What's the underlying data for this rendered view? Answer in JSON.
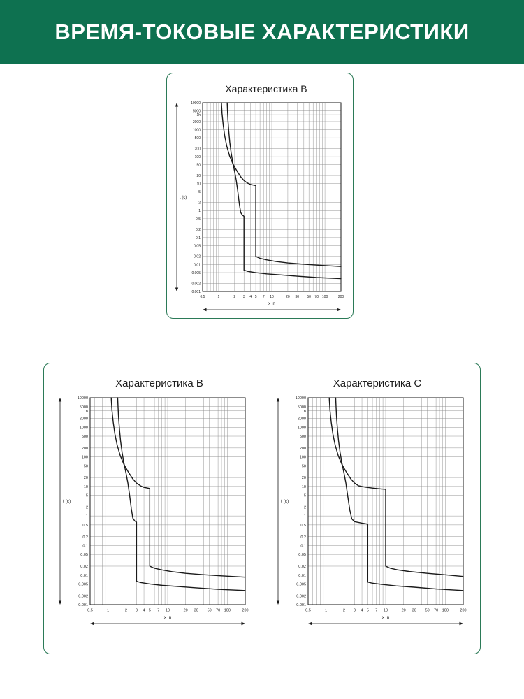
{
  "header": {
    "title": "ВРЕМЯ-ТОКОВЫЕ ХАРАКТЕРИСТИКИ"
  },
  "colors": {
    "header_bg": "#0E7150",
    "header_text": "#FFFFFF",
    "card_border": "#2B7A57",
    "title_text": "#1C1C1C",
    "curve": "#1A1A1A",
    "grid": "#8A8A8A",
    "axis": "#1A1A1A"
  },
  "chart_data": [
    {
      "type": "line",
      "title": "Характеристика B",
      "xlabel": "x In",
      "ylabel": "t (c)",
      "x_scale": "log",
      "y_scale": "log",
      "xlim": [
        0.5,
        200
      ],
      "ylim": [
        0.001,
        10000
      ],
      "x_ticks": [
        {
          "v": 0.5,
          "l": "0.5"
        },
        {
          "v": 1,
          "l": "1"
        },
        {
          "v": 2,
          "l": "2"
        },
        {
          "v": 3,
          "l": "3"
        },
        {
          "v": 4,
          "l": "4"
        },
        {
          "v": 5,
          "l": "5"
        },
        {
          "v": 7,
          "l": "7"
        },
        {
          "v": 10,
          "l": "10"
        },
        {
          "v": 20,
          "l": "20"
        },
        {
          "v": 30,
          "l": "30"
        },
        {
          "v": 50,
          "l": "50"
        },
        {
          "v": 70,
          "l": "70"
        },
        {
          "v": 100,
          "l": "100"
        },
        {
          "v": 200,
          "l": "200"
        }
      ],
      "y_ticks": [
        {
          "v": 10000,
          "l": "10000"
        },
        {
          "v": 5000,
          "l": "5000"
        },
        {
          "v": 3600,
          "l": "1h"
        },
        {
          "v": 2000,
          "l": "2000"
        },
        {
          "v": 1000,
          "l": "1000"
        },
        {
          "v": 500,
          "l": "500"
        },
        {
          "v": 200,
          "l": "200"
        },
        {
          "v": 100,
          "l": "100"
        },
        {
          "v": 50,
          "l": "50"
        },
        {
          "v": 20,
          "l": "20"
        },
        {
          "v": 10,
          "l": "10"
        },
        {
          "v": 5,
          "l": "5"
        },
        {
          "v": 2,
          "l": "2"
        },
        {
          "v": 1,
          "l": "1"
        },
        {
          "v": 0.5,
          "l": "0.5"
        },
        {
          "v": 0.2,
          "l": "0.2"
        },
        {
          "v": 0.1,
          "l": "0.1"
        },
        {
          "v": 0.05,
          "l": "0.05"
        },
        {
          "v": 0.02,
          "l": "0.02"
        },
        {
          "v": 0.01,
          "l": "0.01"
        },
        {
          "v": 0.005,
          "l": "0.005"
        },
        {
          "v": 0.002,
          "l": "0.002"
        },
        {
          "v": 0.001,
          "l": "0.001"
        }
      ],
      "x_grid": [
        0.5,
        0.6,
        0.7,
        0.8,
        0.9,
        1,
        2,
        3,
        4,
        5,
        6,
        7,
        8,
        9,
        10,
        20,
        30,
        40,
        50,
        60,
        70,
        80,
        90,
        100,
        200
      ],
      "y_grid": [
        0.001,
        0.002,
        0.005,
        0.01,
        0.02,
        0.05,
        0.1,
        0.2,
        0.5,
        1,
        2,
        5,
        10,
        20,
        50,
        100,
        200,
        500,
        1000,
        2000,
        3600,
        5000,
        10000
      ],
      "magnetic_trip_range_xIn": [
        3,
        5
      ],
      "series": [
        {
          "name": "upper-trip-limit",
          "points": [
            [
              1.13,
              10000
            ],
            [
              1.16,
              4000
            ],
            [
              1.22,
              1500
            ],
            [
              1.3,
              600
            ],
            [
              1.42,
              250
            ],
            [
              1.6,
              110
            ],
            [
              1.85,
              55
            ],
            [
              2.2,
              30
            ],
            [
              2.6,
              18
            ],
            [
              3,
              13
            ],
            [
              3.5,
              10.5
            ],
            [
              4,
              9.3
            ],
            [
              5,
              8.5
            ],
            [
              5,
              0.02
            ],
            [
              6,
              0.017
            ],
            [
              8,
              0.015
            ],
            [
              12,
              0.013
            ],
            [
              20,
              0.0115
            ],
            [
              40,
              0.0103
            ],
            [
              80,
              0.0094
            ],
            [
              200,
              0.0085
            ]
          ]
        },
        {
          "name": "lower-trip-limit",
          "points": [
            [
              1.45,
              10000
            ],
            [
              1.47,
              5000
            ],
            [
              1.5,
              2200
            ],
            [
              1.55,
              900
            ],
            [
              1.62,
              350
            ],
            [
              1.72,
              140
            ],
            [
              1.85,
              60
            ],
            [
              2,
              28
            ],
            [
              2.15,
              13
            ],
            [
              2.3,
              5
            ],
            [
              2.45,
              1.8
            ],
            [
              2.6,
              0.85
            ],
            [
              2.8,
              0.68
            ],
            [
              3,
              0.62
            ],
            [
              3,
              0.0062
            ],
            [
              3.5,
              0.0056
            ],
            [
              5,
              0.005
            ],
            [
              8,
              0.0045
            ],
            [
              15,
              0.0041
            ],
            [
              30,
              0.0037
            ],
            [
              70,
              0.0033
            ],
            [
              200,
              0.003
            ]
          ]
        }
      ]
    },
    {
      "type": "line",
      "title": "Характеристика B",
      "xlabel": "x In",
      "ylabel": "t (c)",
      "x_scale": "log",
      "y_scale": "log",
      "xlim": [
        0.5,
        200
      ],
      "ylim": [
        0.001,
        10000
      ],
      "x_ticks": [
        {
          "v": 0.5,
          "l": "0.5"
        },
        {
          "v": 1,
          "l": "1"
        },
        {
          "v": 2,
          "l": "2"
        },
        {
          "v": 3,
          "l": "3"
        },
        {
          "v": 4,
          "l": "4"
        },
        {
          "v": 5,
          "l": "5"
        },
        {
          "v": 7,
          "l": "7"
        },
        {
          "v": 10,
          "l": "10"
        },
        {
          "v": 20,
          "l": "20"
        },
        {
          "v": 30,
          "l": "30"
        },
        {
          "v": 50,
          "l": "50"
        },
        {
          "v": 70,
          "l": "70"
        },
        {
          "v": 100,
          "l": "100"
        },
        {
          "v": 200,
          "l": "200"
        }
      ],
      "y_ticks": [
        {
          "v": 10000,
          "l": "10000"
        },
        {
          "v": 5000,
          "l": "5000"
        },
        {
          "v": 3600,
          "l": "1h"
        },
        {
          "v": 2000,
          "l": "2000"
        },
        {
          "v": 1000,
          "l": "1000"
        },
        {
          "v": 500,
          "l": "500"
        },
        {
          "v": 200,
          "l": "200"
        },
        {
          "v": 100,
          "l": "100"
        },
        {
          "v": 50,
          "l": "50"
        },
        {
          "v": 20,
          "l": "20"
        },
        {
          "v": 10,
          "l": "10"
        },
        {
          "v": 5,
          "l": "5"
        },
        {
          "v": 2,
          "l": "2"
        },
        {
          "v": 1,
          "l": "1"
        },
        {
          "v": 0.5,
          "l": "0.5"
        },
        {
          "v": 0.2,
          "l": "0.2"
        },
        {
          "v": 0.1,
          "l": "0.1"
        },
        {
          "v": 0.05,
          "l": "0.05"
        },
        {
          "v": 0.02,
          "l": "0.02"
        },
        {
          "v": 0.01,
          "l": "0.01"
        },
        {
          "v": 0.005,
          "l": "0.005"
        },
        {
          "v": 0.002,
          "l": "0.002"
        },
        {
          "v": 0.001,
          "l": "0.001"
        }
      ],
      "x_grid": [
        0.5,
        0.6,
        0.7,
        0.8,
        0.9,
        1,
        2,
        3,
        4,
        5,
        6,
        7,
        8,
        9,
        10,
        20,
        30,
        40,
        50,
        60,
        70,
        80,
        90,
        100,
        200
      ],
      "y_grid": [
        0.001,
        0.002,
        0.005,
        0.01,
        0.02,
        0.05,
        0.1,
        0.2,
        0.5,
        1,
        2,
        5,
        10,
        20,
        50,
        100,
        200,
        500,
        1000,
        2000,
        3600,
        5000,
        10000
      ],
      "magnetic_trip_range_xIn": [
        3,
        5
      ],
      "series": [
        {
          "name": "upper-trip-limit",
          "points": [
            [
              1.13,
              10000
            ],
            [
              1.16,
              4000
            ],
            [
              1.22,
              1500
            ],
            [
              1.3,
              600
            ],
            [
              1.42,
              250
            ],
            [
              1.6,
              110
            ],
            [
              1.85,
              55
            ],
            [
              2.2,
              30
            ],
            [
              2.6,
              18
            ],
            [
              3,
              13
            ],
            [
              3.5,
              10.5
            ],
            [
              4,
              9.3
            ],
            [
              5,
              8.5
            ],
            [
              5,
              0.02
            ],
            [
              6,
              0.017
            ],
            [
              8,
              0.015
            ],
            [
              12,
              0.013
            ],
            [
              20,
              0.0115
            ],
            [
              40,
              0.0103
            ],
            [
              80,
              0.0094
            ],
            [
              200,
              0.0085
            ]
          ]
        },
        {
          "name": "lower-trip-limit",
          "points": [
            [
              1.45,
              10000
            ],
            [
              1.47,
              5000
            ],
            [
              1.5,
              2200
            ],
            [
              1.55,
              900
            ],
            [
              1.62,
              350
            ],
            [
              1.72,
              140
            ],
            [
              1.85,
              60
            ],
            [
              2,
              28
            ],
            [
              2.15,
              13
            ],
            [
              2.3,
              5
            ],
            [
              2.45,
              1.8
            ],
            [
              2.6,
              0.85
            ],
            [
              2.8,
              0.68
            ],
            [
              3,
              0.62
            ],
            [
              3,
              0.0062
            ],
            [
              3.5,
              0.0056
            ],
            [
              5,
              0.005
            ],
            [
              8,
              0.0045
            ],
            [
              15,
              0.0041
            ],
            [
              30,
              0.0037
            ],
            [
              70,
              0.0033
            ],
            [
              200,
              0.003
            ]
          ]
        }
      ]
    },
    {
      "type": "line",
      "title": "Характеристика C",
      "xlabel": "x In",
      "ylabel": "t (c)",
      "x_scale": "log",
      "y_scale": "log",
      "xlim": [
        0.5,
        200
      ],
      "ylim": [
        0.001,
        10000
      ],
      "x_ticks": [
        {
          "v": 0.5,
          "l": "0.5"
        },
        {
          "v": 1,
          "l": "1"
        },
        {
          "v": 2,
          "l": "2"
        },
        {
          "v": 3,
          "l": "3"
        },
        {
          "v": 4,
          "l": "4"
        },
        {
          "v": 5,
          "l": "5"
        },
        {
          "v": 7,
          "l": "7"
        },
        {
          "v": 10,
          "l": "10"
        },
        {
          "v": 20,
          "l": "20"
        },
        {
          "v": 30,
          "l": "30"
        },
        {
          "v": 50,
          "l": "50"
        },
        {
          "v": 70,
          "l": "70"
        },
        {
          "v": 100,
          "l": "100"
        },
        {
          "v": 200,
          "l": "200"
        }
      ],
      "y_ticks": [
        {
          "v": 10000,
          "l": "10000"
        },
        {
          "v": 5000,
          "l": "5000"
        },
        {
          "v": 3600,
          "l": "1h"
        },
        {
          "v": 2000,
          "l": "2000"
        },
        {
          "v": 1000,
          "l": "1000"
        },
        {
          "v": 500,
          "l": "500"
        },
        {
          "v": 200,
          "l": "200"
        },
        {
          "v": 100,
          "l": "100"
        },
        {
          "v": 50,
          "l": "50"
        },
        {
          "v": 20,
          "l": "20"
        },
        {
          "v": 10,
          "l": "10"
        },
        {
          "v": 5,
          "l": "5"
        },
        {
          "v": 2,
          "l": "2"
        },
        {
          "v": 1,
          "l": "1"
        },
        {
          "v": 0.5,
          "l": "0.5"
        },
        {
          "v": 0.2,
          "l": "0.2"
        },
        {
          "v": 0.1,
          "l": "0.1"
        },
        {
          "v": 0.05,
          "l": "0.05"
        },
        {
          "v": 0.02,
          "l": "0.02"
        },
        {
          "v": 0.01,
          "l": "0.01"
        },
        {
          "v": 0.005,
          "l": "0.005"
        },
        {
          "v": 0.002,
          "l": "0.002"
        },
        {
          "v": 0.001,
          "l": "0.001"
        }
      ],
      "x_grid": [
        0.5,
        0.6,
        0.7,
        0.8,
        0.9,
        1,
        2,
        3,
        4,
        5,
        6,
        7,
        8,
        9,
        10,
        20,
        30,
        40,
        50,
        60,
        70,
        80,
        90,
        100,
        200
      ],
      "y_grid": [
        0.001,
        0.002,
        0.005,
        0.01,
        0.02,
        0.05,
        0.1,
        0.2,
        0.5,
        1,
        2,
        5,
        10,
        20,
        50,
        100,
        200,
        500,
        1000,
        2000,
        3600,
        5000,
        10000
      ],
      "magnetic_trip_range_xIn": [
        5,
        10
      ],
      "series": [
        {
          "name": "upper-trip-limit",
          "points": [
            [
              1.13,
              10000
            ],
            [
              1.16,
              4000
            ],
            [
              1.22,
              1500
            ],
            [
              1.3,
              600
            ],
            [
              1.42,
              250
            ],
            [
              1.6,
              110
            ],
            [
              1.85,
              55
            ],
            [
              2.2,
              30
            ],
            [
              2.6,
              18
            ],
            [
              3,
              13
            ],
            [
              3.5,
              10.5
            ],
            [
              4.5,
              9.5
            ],
            [
              6,
              8.8
            ],
            [
              8,
              8.3
            ],
            [
              10,
              8
            ],
            [
              10,
              0.02
            ],
            [
              12,
              0.017
            ],
            [
              16,
              0.015
            ],
            [
              25,
              0.0132
            ],
            [
              50,
              0.0115
            ],
            [
              100,
              0.0102
            ],
            [
              200,
              0.009
            ]
          ]
        },
        {
          "name": "lower-trip-limit",
          "points": [
            [
              1.45,
              10000
            ],
            [
              1.47,
              5000
            ],
            [
              1.5,
              2200
            ],
            [
              1.55,
              900
            ],
            [
              1.62,
              350
            ],
            [
              1.72,
              140
            ],
            [
              1.85,
              60
            ],
            [
              2,
              28
            ],
            [
              2.15,
              13
            ],
            [
              2.3,
              5
            ],
            [
              2.5,
              1.6
            ],
            [
              2.7,
              0.8
            ],
            [
              3,
              0.64
            ],
            [
              4,
              0.57
            ],
            [
              5,
              0.53
            ],
            [
              5,
              0.0058
            ],
            [
              6,
              0.0053
            ],
            [
              9,
              0.0048
            ],
            [
              15,
              0.0043
            ],
            [
              30,
              0.0039
            ],
            [
              70,
              0.0034
            ],
            [
              200,
              0.003
            ]
          ]
        }
      ]
    }
  ]
}
